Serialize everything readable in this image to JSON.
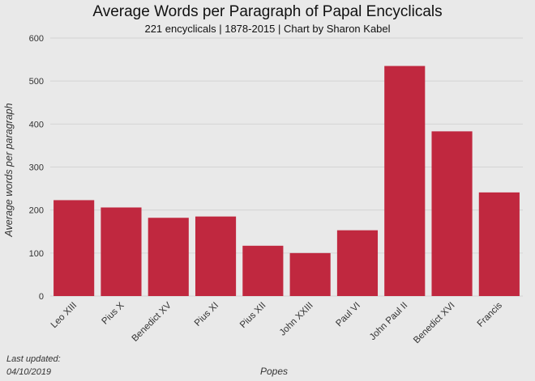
{
  "chart_data": {
    "type": "bar",
    "title": "Average Words per Paragraph of Papal Encyclicals",
    "subtitle": "221 encyclicals | 1878-2015 | Chart by Sharon Kabel",
    "xlabel": "Popes",
    "ylabel": "Average words per paragraph",
    "categories": [
      "Leo XIII",
      "Pius X",
      "Benedict XV",
      "Pius XI",
      "Pius XII",
      "John XXIII",
      "Paul VI",
      "John Paul II",
      "Benedict XVI",
      "Francis"
    ],
    "values": [
      223,
      206,
      182,
      185,
      117,
      100,
      153,
      535,
      383,
      241
    ],
    "ylim": [
      0,
      600
    ],
    "yticks": [
      0,
      100,
      200,
      300,
      400,
      500,
      600
    ],
    "grid": true,
    "bar_color": "#c0283f",
    "background_color": "#e9e9e9",
    "grid_color": "#d4d4d4"
  },
  "footer": {
    "updated_label": "Last updated:",
    "updated_date": "04/10/2019"
  }
}
